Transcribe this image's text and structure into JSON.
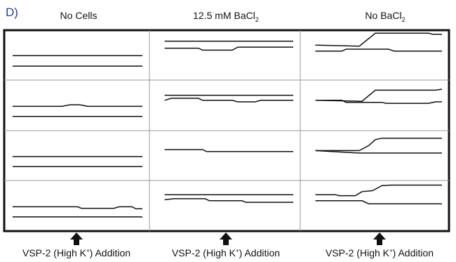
{
  "panel_letter": "D)",
  "columns": [
    {
      "title": "No Cells",
      "title_sub": ""
    },
    {
      "title": "12.5 mM  BaCl",
      "title_sub": "2"
    },
    {
      "title": "No BaCl",
      "title_sub": "2"
    }
  ],
  "addition_label": {
    "pre": "VSP-2 (High K",
    "sup": "+",
    "post": ") Addition"
  },
  "traces": [
    [
      [
        [
          [
            0,
            0.51
          ],
          [
            1,
            0.51
          ]
        ],
        [
          [
            0,
            0.72
          ],
          [
            1,
            0.72
          ]
        ]
      ],
      [
        [
          [
            0,
            0.52
          ],
          [
            0.38,
            0.52
          ],
          [
            0.44,
            0.49
          ],
          [
            0.52,
            0.49
          ],
          [
            0.58,
            0.52
          ],
          [
            1,
            0.52
          ]
        ],
        [
          [
            0,
            0.72
          ],
          [
            1,
            0.72
          ]
        ]
      ],
      [
        [
          [
            0,
            0.52
          ],
          [
            1,
            0.52
          ]
        ],
        [
          [
            0,
            0.72
          ],
          [
            1,
            0.72
          ]
        ]
      ],
      [
        [
          [
            0,
            0.52
          ],
          [
            0.5,
            0.52
          ],
          [
            0.53,
            0.55
          ],
          [
            0.78,
            0.55
          ],
          [
            0.82,
            0.52
          ],
          [
            0.92,
            0.52
          ],
          [
            0.95,
            0.56
          ],
          [
            1,
            0.56
          ]
        ],
        [
          [
            0,
            0.72
          ],
          [
            1,
            0.72
          ]
        ]
      ]
    ],
    [
      [
        [
          [
            0.05,
            0.22
          ],
          [
            1,
            0.22
          ]
        ],
        [
          [
            0.05,
            0.36
          ],
          [
            0.3,
            0.36
          ],
          [
            0.33,
            0.4
          ],
          [
            0.55,
            0.4
          ],
          [
            0.59,
            0.34
          ],
          [
            1,
            0.34
          ]
        ]
      ],
      [
        [
          [
            0.05,
            0.3
          ],
          [
            1,
            0.3
          ]
        ],
        [
          [
            0.05,
            0.4
          ],
          [
            0.1,
            0.36
          ],
          [
            0.3,
            0.36
          ],
          [
            0.33,
            0.4
          ],
          [
            0.55,
            0.4
          ],
          [
            0.59,
            0.43
          ],
          [
            0.72,
            0.43
          ],
          [
            0.76,
            0.4
          ],
          [
            1,
            0.4
          ]
        ]
      ],
      [
        [
          [
            0.05,
            0.38
          ],
          [
            0.33,
            0.38
          ],
          [
            0.36,
            0.42
          ],
          [
            1,
            0.42
          ]
        ]
      ],
      [
        [
          [
            0.05,
            0.28
          ],
          [
            1,
            0.28
          ]
        ],
        [
          [
            0.05,
            0.38
          ],
          [
            0.12,
            0.36
          ],
          [
            0.35,
            0.36
          ],
          [
            0.38,
            0.4
          ],
          [
            0.62,
            0.4
          ],
          [
            0.65,
            0.43
          ],
          [
            1,
            0.43
          ]
        ]
      ]
    ],
    [
      [
        [
          [
            0.05,
            0.3
          ],
          [
            0.38,
            0.32
          ],
          [
            0.5,
            0.06
          ],
          [
            0.9,
            0.06
          ],
          [
            0.93,
            0.08
          ],
          [
            1,
            0.08
          ]
        ],
        [
          [
            0.05,
            0.42
          ],
          [
            0.25,
            0.42
          ],
          [
            0.28,
            0.38
          ],
          [
            0.6,
            0.38
          ],
          [
            0.64,
            0.42
          ],
          [
            1,
            0.42
          ]
        ]
      ],
      [
        [
          [
            0.05,
            0.4
          ],
          [
            0.4,
            0.42
          ],
          [
            0.5,
            0.2
          ],
          [
            0.95,
            0.2
          ],
          [
            1,
            0.18
          ]
        ],
        [
          [
            0.05,
            0.4
          ],
          [
            0.25,
            0.4
          ],
          [
            0.28,
            0.44
          ],
          [
            0.55,
            0.44
          ],
          [
            0.58,
            0.46
          ],
          [
            0.9,
            0.46
          ],
          [
            0.95,
            0.43
          ],
          [
            1,
            0.43
          ]
        ]
      ],
      [
        [
          [
            0.05,
            0.4
          ],
          [
            0.38,
            0.4
          ],
          [
            0.45,
            0.3
          ],
          [
            0.5,
            0.18
          ],
          [
            0.55,
            0.15
          ],
          [
            1,
            0.15
          ]
        ],
        [
          [
            0.05,
            0.4
          ],
          [
            0.38,
            0.45
          ],
          [
            1,
            0.45
          ]
        ]
      ],
      [
        [
          [
            0.05,
            0.28
          ],
          [
            0.2,
            0.28
          ],
          [
            0.23,
            0.3
          ],
          [
            0.35,
            0.3
          ],
          [
            0.4,
            0.22
          ],
          [
            0.48,
            0.2
          ],
          [
            0.55,
            0.1
          ],
          [
            0.62,
            0.09
          ],
          [
            1,
            0.09
          ]
        ],
        [
          [
            0.05,
            0.4
          ],
          [
            0.4,
            0.4
          ],
          [
            0.45,
            0.46
          ],
          [
            1,
            0.46
          ]
        ]
      ]
    ]
  ]
}
